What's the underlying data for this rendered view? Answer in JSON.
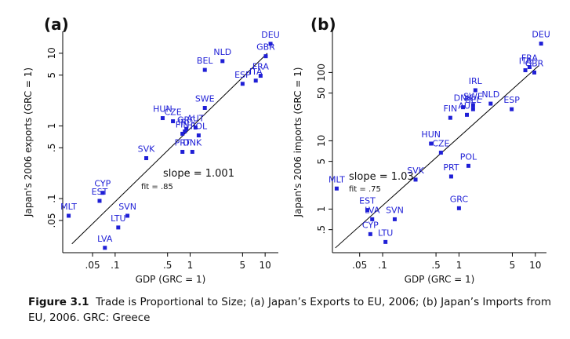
{
  "chart_data": [
    {
      "type": "scatter",
      "panel": "(a)",
      "x_label": "GDP (GRC = 1)",
      "y_label": "Japan's 2006 exports (GRC = 1)",
      "log_scale": true,
      "color": "#1f1fd6",
      "labels": [
        "DEU",
        "GBR",
        "FRA",
        "ITA",
        "ESP",
        "NLD",
        "BEL",
        "SWE",
        "HUN",
        "CZE",
        "GRC",
        "FIN",
        "IRL",
        "AUT",
        "POL",
        "PRT",
        "DNK",
        "SVK",
        "CYP",
        "EST",
        "MLT",
        "SVN",
        "LTU",
        "LVA"
      ],
      "x": [
        11.8,
        10.2,
        8.7,
        7.5,
        5.0,
        2.7,
        1.57,
        1.57,
        0.43,
        0.59,
        0.89,
        0.79,
        0.85,
        1.18,
        1.3,
        0.79,
        1.07,
        0.26,
        0.068,
        0.062,
        0.024,
        0.146,
        0.11,
        0.073
      ],
      "y": [
        13.5,
        9.1,
        4.9,
        4.2,
        3.8,
        7.8,
        5.9,
        1.77,
        1.28,
        1.16,
        0.91,
        0.78,
        0.84,
        0.95,
        0.74,
        0.44,
        0.44,
        0.36,
        0.12,
        0.093,
        0.058,
        0.058,
        0.04,
        0.021
      ],
      "fit_line": {
        "x": [
          0.0265,
          10.7
        ],
        "y": [
          0.0238,
          10
        ]
      },
      "annotations": [
        "slope = 1.001",
        "fit = .85"
      ],
      "xlim": [
        0.02,
        15
      ],
      "ylim": [
        0.018,
        20
      ],
      "xticks": [
        {
          "value": 0.05,
          "label": ".05"
        },
        {
          "value": 0.1,
          "label": ".1"
        },
        {
          "value": 0.5,
          "label": ".5"
        },
        1,
        5,
        10
      ],
      "yticks": [
        {
          "value": 0.05,
          "label": ".05"
        },
        {
          "value": 0.1,
          "label": ".1"
        },
        {
          "value": 0.5,
          "label": ".5"
        },
        1,
        5,
        10
      ]
    },
    {
      "type": "scatter",
      "panel": "(b)",
      "x_label": "GDP (GRC = 1)",
      "y_label": "Japan's 2006 imports (GRC = 1)",
      "log_scale": true,
      "color": "#1f1fd6",
      "labels": [
        "DEU",
        "FRA",
        "ITA",
        "GBR",
        "IRL",
        "DNK",
        "SWE",
        "BEL",
        "NLD",
        "AUT",
        "ESP",
        "FIN",
        "HUN",
        "CZE",
        "POL",
        "PRT",
        "SVK",
        "GRC",
        "MLT",
        "EST",
        "LVA",
        "SVN",
        "CYP",
        "LTU"
      ],
      "x": [
        11.9,
        8.4,
        7.4,
        9.7,
        1.64,
        1.13,
        1.53,
        1.53,
        2.6,
        1.27,
        4.9,
        0.77,
        0.43,
        0.58,
        1.33,
        0.79,
        0.27,
        1.0,
        0.025,
        0.063,
        0.073,
        0.144,
        0.069,
        0.109
      ],
      "y": [
        265,
        120,
        108,
        100,
        55,
        31,
        33,
        29,
        35,
        24,
        29,
        21.7,
        9.1,
        6.7,
        4.3,
        3.0,
        2.7,
        1.03,
        2.0,
        0.97,
        0.71,
        0.71,
        0.43,
        0.33
      ],
      "fit_line": {
        "x": [
          0.024,
          11.1
        ],
        "y": [
          0.27,
          126
        ]
      },
      "annotations": [
        "slope = 1.03",
        "fit = .75"
      ],
      "xlim": [
        0.022,
        14
      ],
      "ylim": [
        0.23,
        400
      ],
      "xticks": [
        {
          "value": 0.05,
          "label": ".05"
        },
        {
          "value": 0.1,
          "label": ".1"
        },
        {
          "value": 0.5,
          "label": ".5"
        },
        1,
        5,
        10
      ],
      "yticks": [
        {
          "value": 0.5,
          "label": ".5"
        },
        1,
        5,
        10,
        50,
        100
      ]
    }
  ],
  "caption": {
    "label": "Figure 3.1",
    "text": "Trade is Proportional to Size; (a) Japan’s Exports to EU, 2006; (b) Japan’s Imports from EU, 2006. GRC: Greece"
  }
}
